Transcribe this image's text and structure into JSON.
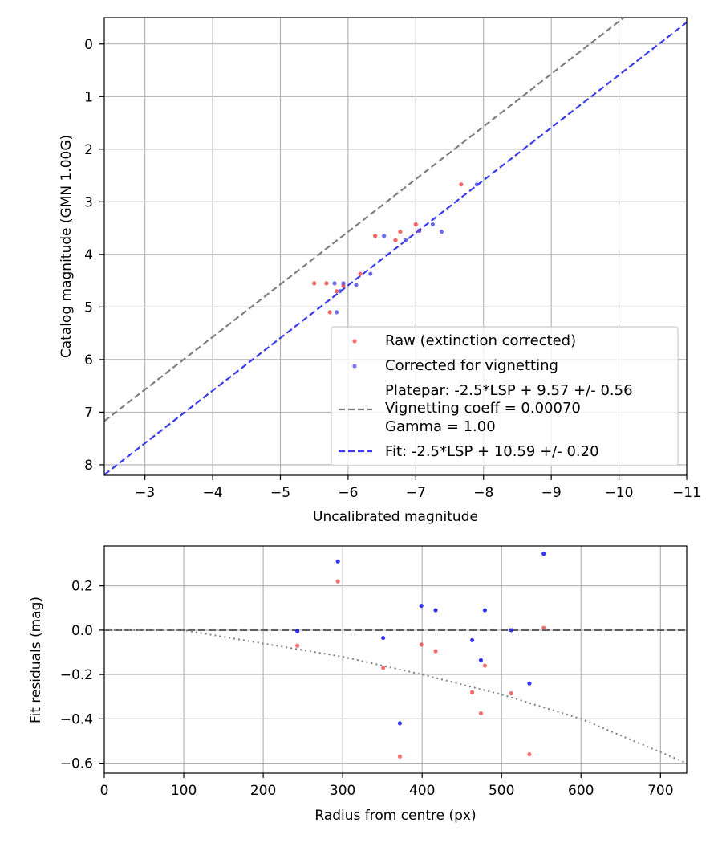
{
  "chart_data": [
    {
      "type": "scatter",
      "xlabel": "Uncalibrated magnitude",
      "ylabel": "Catalog magnitude (GMN 1.00G)",
      "xlim": [
        -2.4,
        -11
      ],
      "ylim": [
        8.2,
        -0.5
      ],
      "x_inverted": true,
      "y_inverted": true,
      "grid": true,
      "legend_position": "lower-right",
      "x_ticks": [
        -3,
        -4,
        -5,
        -6,
        -7,
        -8,
        -9,
        -10,
        -11
      ],
      "x_tick_labels": [
        "−3",
        "−4",
        "−5",
        "−6",
        "−7",
        "−8",
        "−9",
        "−10",
        "−11"
      ],
      "y_ticks": [
        0,
        1,
        2,
        3,
        4,
        5,
        6,
        7,
        8
      ],
      "y_tick_labels": [
        "0",
        "1",
        "2",
        "3",
        "4",
        "5",
        "6",
        "7",
        "8"
      ],
      "series": [
        {
          "name": "Raw (extinction corrected)",
          "kind": "scatter",
          "color": "#f04040",
          "points": [
            [
              -5.5,
              4.55
            ],
            [
              -5.68,
              4.55
            ],
            [
              -5.73,
              5.1
            ],
            [
              -5.83,
              4.7
            ],
            [
              -5.93,
              4.6
            ],
            [
              -6.18,
              4.37
            ],
            [
              -6.4,
              3.65
            ],
            [
              -6.7,
              3.73
            ],
            [
              -6.77,
              3.57
            ],
            [
              -7.0,
              3.43
            ],
            [
              -7.05,
              3.55
            ],
            [
              -7.67,
              2.67
            ]
          ]
        },
        {
          "name": "Corrected for vignetting",
          "kind": "scatter",
          "color": "#4a4ae8",
          "points": [
            [
              -5.8,
              4.55
            ],
            [
              -5.83,
              5.1
            ],
            [
              -5.88,
              4.7
            ],
            [
              -5.93,
              4.55
            ],
            [
              -6.12,
              4.58
            ],
            [
              -6.33,
              4.37
            ],
            [
              -6.53,
              3.65
            ],
            [
              -6.85,
              3.73
            ],
            [
              -7.05,
              3.55
            ],
            [
              -7.25,
              3.43
            ],
            [
              -7.38,
              3.57
            ],
            [
              -7.9,
              2.67
            ]
          ]
        },
        {
          "name": "Platepar: -2.5*LSP + 9.57 +/- 0.56\nVignetting coeff = 0.00070\nGamma = 1.00",
          "kind": "line",
          "style": "dashed",
          "color": "#808080",
          "x": [
            -2.4,
            -11
          ],
          "y": [
            7.17,
            -1.43
          ]
        },
        {
          "name": "Fit: -2.5*LSP + 10.59 +/- 0.20",
          "kind": "line",
          "style": "dashed",
          "color": "#3a3aee",
          "x": [
            -2.4,
            -11
          ],
          "y": [
            8.19,
            -0.41
          ]
        }
      ],
      "legend": {
        "raw": "Raw (extinction corrected)",
        "vig": "Corrected for vignetting",
        "platepar_line1": "Platepar: -2.5*LSP + 9.57 +/- 0.56",
        "platepar_line2": "Vignetting coeff = 0.00070",
        "platepar_line3": "Gamma = 1.00",
        "fit": "Fit: -2.5*LSP + 10.59 +/- 0.20"
      }
    },
    {
      "type": "scatter",
      "xlabel": "Radius from centre (px)",
      "ylabel": "Fit residuals (mag)",
      "xlim": [
        0,
        733
      ],
      "ylim": [
        -0.645,
        0.38
      ],
      "grid": true,
      "x_ticks": [
        0,
        100,
        200,
        300,
        400,
        500,
        600,
        700
      ],
      "x_tick_labels": [
        "0",
        "100",
        "200",
        "300",
        "400",
        "500",
        "600",
        "700"
      ],
      "y_ticks": [
        0.2,
        0.0,
        -0.2,
        -0.4,
        -0.6
      ],
      "y_tick_labels": [
        "0.2",
        "0.0",
        "−0.2",
        "−0.4",
        "−0.6"
      ],
      "series": [
        {
          "name": "",
          "kind": "scatter",
          "color": "#f04040",
          "points": [
            [
              243,
              -0.07
            ],
            [
              294,
              0.22
            ],
            [
              351,
              -0.17
            ],
            [
              372,
              -0.57
            ],
            [
              399,
              -0.065
            ],
            [
              417,
              -0.095
            ],
            [
              463,
              -0.28
            ],
            [
              474,
              -0.375
            ],
            [
              479,
              -0.16
            ],
            [
              512,
              -0.285
            ],
            [
              535,
              -0.56
            ],
            [
              553,
              0.01
            ]
          ]
        },
        {
          "name": "",
          "kind": "scatter",
          "color": "#2020ee",
          "points": [
            [
              243,
              -0.005
            ],
            [
              294,
              0.31
            ],
            [
              351,
              -0.035
            ],
            [
              372,
              -0.42
            ],
            [
              399,
              0.11
            ],
            [
              417,
              0.09
            ],
            [
              463,
              -0.045
            ],
            [
              474,
              -0.135
            ],
            [
              479,
              0.09
            ],
            [
              512,
              0.0
            ],
            [
              535,
              -0.24
            ],
            [
              553,
              0.345
            ]
          ]
        },
        {
          "name": "",
          "kind": "line",
          "style": "dashed",
          "color": "#606060",
          "x": [
            0,
            733
          ],
          "y": [
            0,
            0
          ]
        },
        {
          "name": "",
          "kind": "curve",
          "style": "dotted",
          "color": "#808080",
          "function": "-0.00070 * (r - 100) for r > 100, else 0 (approx. vignetting curve)",
          "x": [
            0,
            100,
            200,
            300,
            400,
            500,
            600,
            733
          ],
          "y": [
            0,
            0,
            -0.06,
            -0.12,
            -0.2,
            -0.29,
            -0.4,
            -0.6
          ]
        }
      ]
    }
  ]
}
